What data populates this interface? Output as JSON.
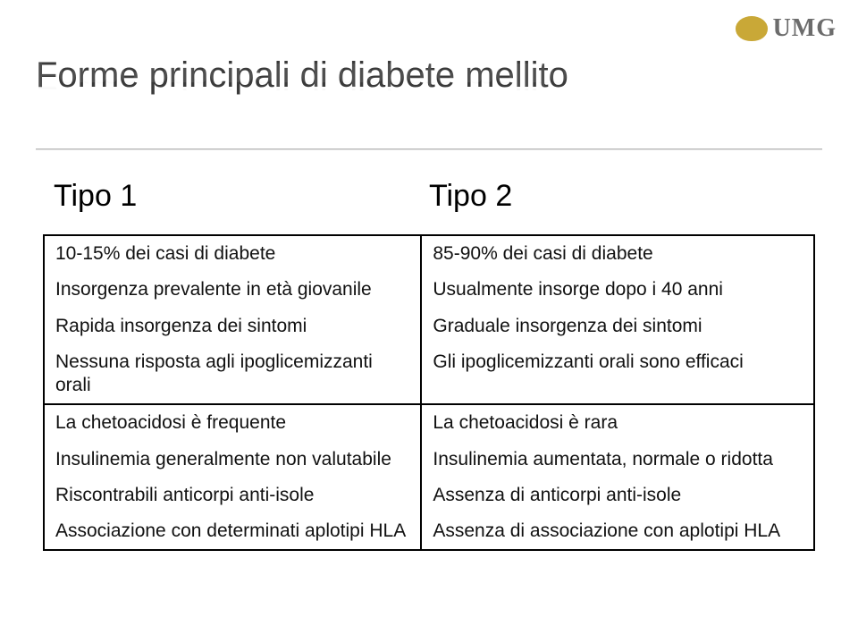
{
  "logo": {
    "text": "UMG",
    "text_color": "#6c6c6c",
    "fontsize": 28
  },
  "title": {
    "text": "Forme principali di diabete mellito",
    "fontsize": 40,
    "color": "#3a3a3a"
  },
  "labels": {
    "left": "Tipo 1",
    "right": "Tipo 2",
    "fontsize": 34,
    "color": "#000000"
  },
  "table": {
    "border_color": "#000000",
    "border_width": 2,
    "cell_padding_y": 7,
    "cell_padding_x": 12,
    "fontsize": 21,
    "line_height": 1.25,
    "separator_after_row": 3,
    "rows": [
      {
        "left": "10-15% dei casi di diabete",
        "right": "85-90% dei casi di diabete"
      },
      {
        "left": "Insorgenza prevalente in età giovanile",
        "right": "Usualmente insorge dopo i 40 anni"
      },
      {
        "left": "Rapida insorgenza dei sintomi",
        "right": "Graduale insorgenza dei sintomi"
      },
      {
        "left": "Nessuna risposta agli ipoglicemizzanti orali",
        "right": "Gli ipoglicemizzanti orali sono efficaci"
      },
      {
        "left": "La chetoacidosi è frequente",
        "right": "La chetoacidosi è rara"
      },
      {
        "left": "Insulinemia generalmente non valutabile",
        "right": "Insulinemia aumentata, normale o ridotta"
      },
      {
        "left": "Riscontrabili anticorpi anti-isole",
        "right": "Assenza di anticorpi anti-isole"
      },
      {
        "left": "Associazione con determinati aplotipi HLA",
        "right": "Assenza di associazione con aplotipi HLA"
      }
    ]
  }
}
